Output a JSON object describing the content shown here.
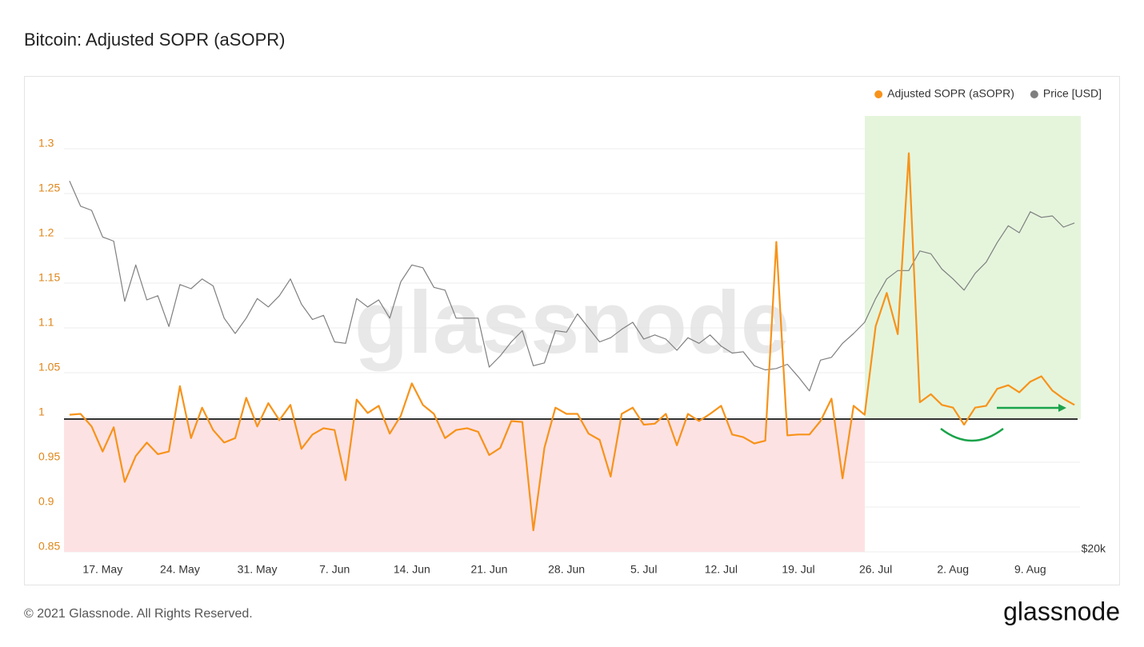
{
  "chart_data": {
    "type": "line",
    "title": "Bitcoin: Adjusted SOPR (aSOPR)",
    "watermark": "glassnode",
    "categories": [
      null,
      null,
      null,
      "17. May",
      null,
      null,
      null,
      null,
      null,
      null,
      "24. May",
      null,
      null,
      null,
      null,
      null,
      null,
      "31. May",
      null,
      null,
      null,
      null,
      null,
      null,
      "7. Jun",
      null,
      null,
      null,
      null,
      null,
      null,
      "14. Jun",
      null,
      null,
      null,
      null,
      null,
      null,
      "21. Jun",
      null,
      null,
      null,
      null,
      null,
      null,
      "28. Jun",
      null,
      null,
      null,
      null,
      null,
      null,
      "5. Jul",
      null,
      null,
      null,
      null,
      null,
      null,
      "12. Jul",
      null,
      null,
      null,
      null,
      null,
      null,
      "19. Jul",
      null,
      null,
      null,
      null,
      null,
      null,
      "26. Jul",
      null,
      null,
      null,
      null,
      null,
      null,
      "2. Aug",
      null,
      null,
      null,
      null,
      null,
      null,
      "9. Aug",
      null,
      null,
      null,
      null
    ],
    "series": [
      {
        "name": "Adjusted SOPR (aSOPR)",
        "color": "#f7931a",
        "values": [
          1.003,
          1.004,
          0.99,
          0.962,
          0.989,
          0.928,
          0.957,
          0.972,
          0.959,
          0.962,
          1.035,
          0.977,
          1.011,
          0.986,
          0.972,
          0.977,
          1.022,
          0.99,
          1.016,
          0.997,
          1.014,
          0.965,
          0.981,
          0.988,
          0.986,
          0.93,
          1.02,
          1.005,
          1.013,
          0.982,
          1.002,
          1.038,
          1.014,
          1.004,
          0.977,
          0.986,
          0.988,
          0.984,
          0.958,
          0.966,
          0.996,
          0.995,
          0.874,
          0.966,
          1.011,
          1.004,
          1.004,
          0.982,
          0.975,
          0.934,
          1.004,
          1.011,
          0.992,
          0.993,
          1.004,
          0.969,
          1.004,
          0.996,
          1.004,
          1.013,
          0.981,
          0.978,
          0.971,
          0.974,
          1.196,
          0.98,
          0.981,
          0.981,
          0.996,
          1.021,
          0.932,
          1.013,
          1.003,
          1.102,
          1.139,
          1.093,
          1.295,
          1.017,
          1.026,
          1.014,
          1.011,
          0.992,
          1.011,
          1.013,
          1.032,
          1.036,
          1.028,
          1.04,
          1.046,
          1.03,
          1.021,
          1.014
        ]
      },
      {
        "name": "Price [USD]",
        "color": "#7f7f7f",
        "axis": "y2",
        "values": [
          46500,
          44700,
          44400,
          42500,
          42200,
          37900,
          40500,
          38000,
          38300,
          36100,
          39100,
          38800,
          39500,
          39000,
          36700,
          35600,
          36700,
          38100,
          37500,
          38300,
          39500,
          37700,
          36600,
          36900,
          35000,
          34900,
          38100,
          37500,
          38000,
          36700,
          39300,
          40500,
          40300,
          38900,
          38700,
          36700,
          36700,
          36700,
          33200,
          34000,
          35000,
          35800,
          33300,
          33500,
          35800,
          35700,
          37000,
          36000,
          35000,
          35300,
          35900,
          36400,
          35200,
          35500,
          35200,
          34400,
          35300,
          34900,
          35500,
          34700,
          34200,
          34300,
          33300,
          33000,
          33100,
          33400,
          32500,
          31500,
          33700,
          33900,
          34900,
          35600,
          36400,
          38100,
          39500,
          40100,
          40100,
          41500,
          41300,
          40200,
          39500,
          38700,
          39900,
          40700,
          42100,
          43300,
          42800,
          44300,
          43900,
          44000,
          43200,
          43500
        ]
      }
    ],
    "ylim": [
      0.85,
      1.35
    ],
    "yticks": [
      0.85,
      0.9,
      0.95,
      1,
      1.05,
      1.1,
      1.15,
      1.2,
      1.25,
      1.3
    ],
    "y2lim": [
      20000,
      52000
    ],
    "y2ticks": [
      {
        "value": 20000,
        "label": "$20k"
      }
    ],
    "grid": true,
    "legend": "top-right"
  },
  "footer": {
    "copyright": "© 2021 Glassnode. All Rights Reserved.",
    "logo": "glassnode"
  }
}
